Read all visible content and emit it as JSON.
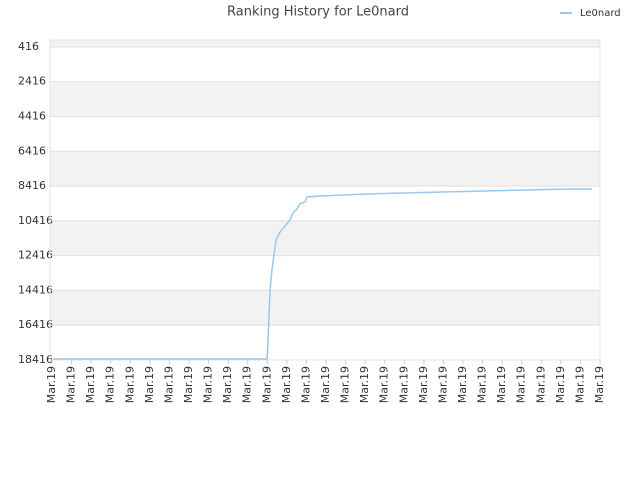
{
  "chart_data": {
    "type": "line",
    "title": "Ranking History for Le0nard",
    "x": [
      0.05,
      10.99,
      11.04,
      11.14,
      11.24,
      11.34,
      11.45,
      11.65,
      11.91,
      12.16,
      12.31,
      12.52,
      12.67,
      12.93,
      13.03,
      13.69,
      14.87,
      16.15,
      17.88,
      19.98,
      22.13,
      24.27,
      26.47,
      27.59
    ],
    "series": [
      {
        "name": "Le0nard",
        "color": "#99c8ee",
        "values": [
          18358,
          18358,
          17264,
          14389,
          13239,
          12376,
          11514,
          11054,
          10709,
          10364,
          9961,
          9731,
          9444,
          9329,
          9041,
          8984,
          8926,
          8868,
          8811,
          8753,
          8696,
          8638,
          8581,
          8581
        ]
      }
    ],
    "xlim": [
      0,
      28
    ],
    "xticks": [
      {
        "value": 0,
        "label": "Mar.19"
      },
      {
        "value": 1,
        "label": "Mar.19"
      },
      {
        "value": 2,
        "label": "Mar.19"
      },
      {
        "value": 3,
        "label": "Mar.19"
      },
      {
        "value": 4,
        "label": "Mar.19"
      },
      {
        "value": 5,
        "label": "Mar.19"
      },
      {
        "value": 6,
        "label": "Mar.19"
      },
      {
        "value": 7,
        "label": "Mar.19"
      },
      {
        "value": 8,
        "label": "Mar.19"
      },
      {
        "value": 9,
        "label": "Mar.19"
      },
      {
        "value": 10,
        "label": "Mar.19"
      },
      {
        "value": 11,
        "label": "Mar.19"
      },
      {
        "value": 12,
        "label": "Mar.19"
      },
      {
        "value": 13,
        "label": "Mar.19"
      },
      {
        "value": 14,
        "label": "Mar.19"
      },
      {
        "value": 15,
        "label": "Mar.19"
      },
      {
        "value": 16,
        "label": "Mar.19"
      },
      {
        "value": 17,
        "label": "Mar.19"
      },
      {
        "value": 18,
        "label": "Mar.19"
      },
      {
        "value": 19,
        "label": "Mar.19"
      },
      {
        "value": 20,
        "label": "Mar.19"
      },
      {
        "value": 21,
        "label": "Mar.19"
      },
      {
        "value": 22,
        "label": "Mar.19"
      },
      {
        "value": 23,
        "label": "Mar.19"
      },
      {
        "value": 24,
        "label": "Mar.19"
      },
      {
        "value": 25,
        "label": "Mar.19"
      },
      {
        "value": 26,
        "label": "Mar.19"
      },
      {
        "value": 27,
        "label": "Mar.19"
      },
      {
        "value": 28,
        "label": "Mar.19"
      }
    ],
    "ylim": [
      18416,
      16
    ],
    "yticks": [
      416,
      2416,
      4416,
      6416,
      8416,
      10416,
      12416,
      14416,
      16416,
      18416
    ],
    "grid": true,
    "legend": "top-right"
  }
}
